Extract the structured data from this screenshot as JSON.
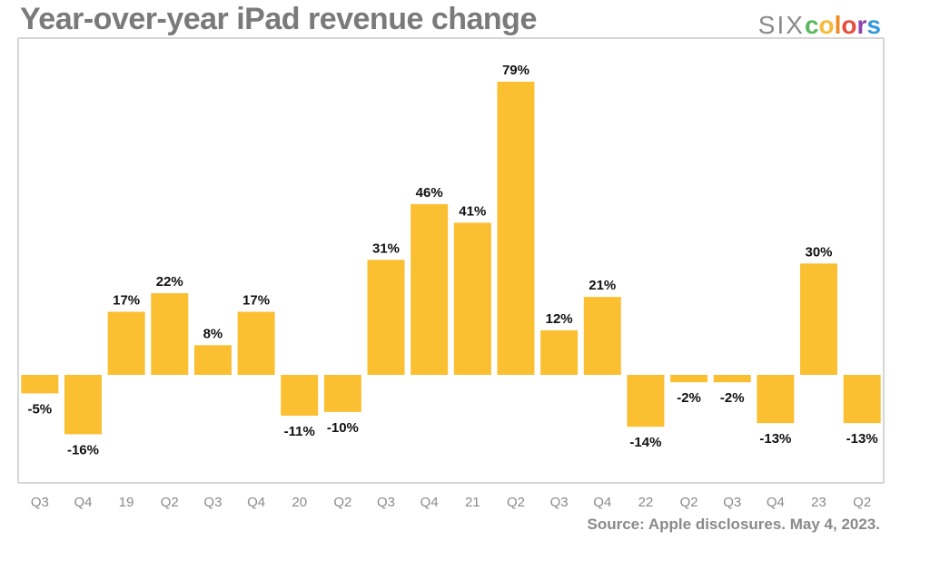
{
  "header": {
    "title": "Year-over-year iPad revenue change",
    "logo": {
      "prefix": "SIX",
      "letters": [
        {
          "char": "c",
          "color": "#5cb85c"
        },
        {
          "char": "o",
          "color": "#f6b93b"
        },
        {
          "char": "l",
          "color": "#f08a24"
        },
        {
          "char": "o",
          "color": "#e74c3c"
        },
        {
          "char": "r",
          "color": "#8e44ad"
        },
        {
          "char": "s",
          "color": "#3498db"
        }
      ]
    }
  },
  "footer": {
    "source": "Source: Apple disclosures. May 4, 2023."
  },
  "chart_data": {
    "type": "bar",
    "title": "Year-over-year iPad revenue change",
    "xlabel": "",
    "ylabel": "",
    "categories": [
      "Q3",
      "Q4",
      "19",
      "Q2",
      "Q3",
      "Q4",
      "20",
      "Q2",
      "Q3",
      "Q4",
      "21",
      "Q2",
      "Q3",
      "Q4",
      "22",
      "Q2",
      "Q3",
      "Q4",
      "23",
      "Q2"
    ],
    "values": [
      -5,
      -16,
      17,
      22,
      8,
      17,
      -11,
      -10,
      31,
      46,
      41,
      79,
      12,
      21,
      -14,
      -2,
      -2,
      -13,
      30,
      -13
    ],
    "labels": [
      "-5%",
      "-16%",
      "17%",
      "22%",
      "8%",
      "17%",
      "-11%",
      "-10%",
      "31%",
      "46%",
      "41%",
      "79%",
      "12%",
      "21%",
      "-14%",
      "-2%",
      "-2%",
      "-13%",
      "30%",
      "-13%"
    ],
    "ylim": [
      -30,
      79
    ],
    "grid": false,
    "legend": "none",
    "colors": {
      "bar": "#fbbf32",
      "label": "#111111",
      "tick": "#8a8a8a",
      "frame": "#c8c8c8"
    },
    "source": "Source: Apple disclosures. May 4, 2023."
  }
}
